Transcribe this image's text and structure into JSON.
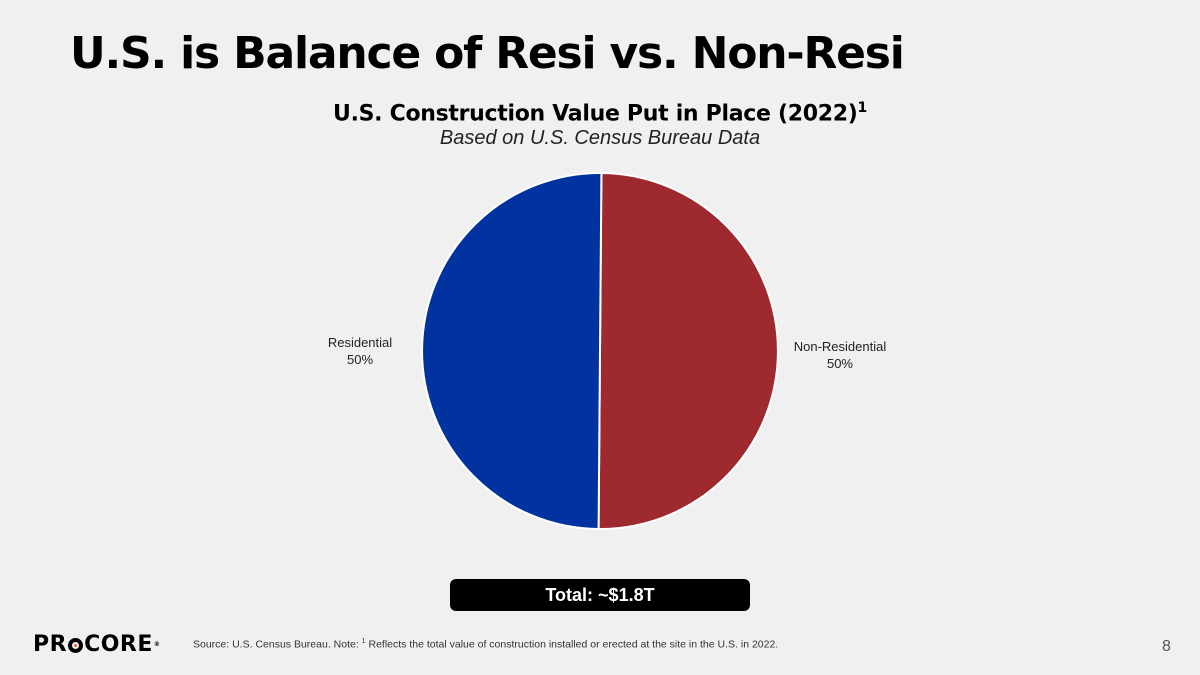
{
  "slide": {
    "title": "U.S. is Balance of Resi vs. Non-Resi",
    "total_label": "Total: ~$1.8T",
    "page_number": "8"
  },
  "footer": {
    "logo_text_pre": "PR",
    "logo_text_post": "CORE",
    "source_prefix": "Source: U.S. Census Bureau. Note: ",
    "source_superscript": "1",
    "source_rest": " Reflects the total value of construction installed or erected at the site in the U.S. in 2022."
  },
  "chart_data": {
    "type": "pie",
    "title": "U.S. Construction Value Put in Place (2022)",
    "title_superscript": "1",
    "subtitle": "Based on U.S. Census Bureau Data",
    "slices": [
      {
        "label": "Non-Residential",
        "value": 50,
        "value_label": "50%",
        "color": "#9e2a2f"
      },
      {
        "label": "Residential",
        "value": 50,
        "value_label": "50%",
        "color": "#0033a0"
      }
    ]
  },
  "colors": {
    "background": "#f0f0f0",
    "accent": "#f26722"
  }
}
